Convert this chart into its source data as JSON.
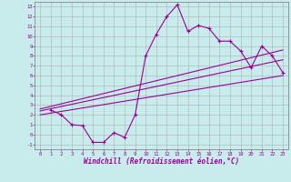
{
  "xlabel": "Windchill (Refroidissement éolien,°C)",
  "bg_color": "#c8ecec",
  "line_color": "#990099",
  "grid_color": "#b0b0b0",
  "xlim": [
    -0.5,
    23.5
  ],
  "ylim": [
    -1.5,
    13.5
  ],
  "xticks": [
    0,
    1,
    2,
    3,
    4,
    5,
    6,
    7,
    8,
    9,
    10,
    11,
    12,
    13,
    14,
    15,
    16,
    17,
    18,
    19,
    20,
    21,
    22,
    23
  ],
  "yticks": [
    -1,
    0,
    1,
    2,
    3,
    4,
    5,
    6,
    7,
    8,
    9,
    10,
    11,
    12,
    13
  ],
  "data_x": [
    1,
    2,
    3,
    4,
    5,
    6,
    7,
    8,
    9,
    10,
    11,
    12,
    13,
    14,
    15,
    16,
    17,
    18,
    19,
    20,
    21,
    22,
    23
  ],
  "data_y": [
    2.5,
    2.0,
    1.0,
    0.9,
    -0.8,
    -0.8,
    0.2,
    -0.3,
    2.0,
    8.0,
    10.2,
    12.0,
    13.2,
    10.5,
    11.1,
    10.8,
    9.5,
    9.5,
    8.5,
    6.8,
    9.0,
    8.0,
    6.3
  ],
  "trend1_x": [
    0,
    23
  ],
  "trend1_y": [
    2.6,
    8.6
  ],
  "trend2_x": [
    0,
    23
  ],
  "trend2_y": [
    2.4,
    7.6
  ],
  "trend3_x": [
    0,
    23
  ],
  "trend3_y": [
    2.0,
    6.0
  ]
}
